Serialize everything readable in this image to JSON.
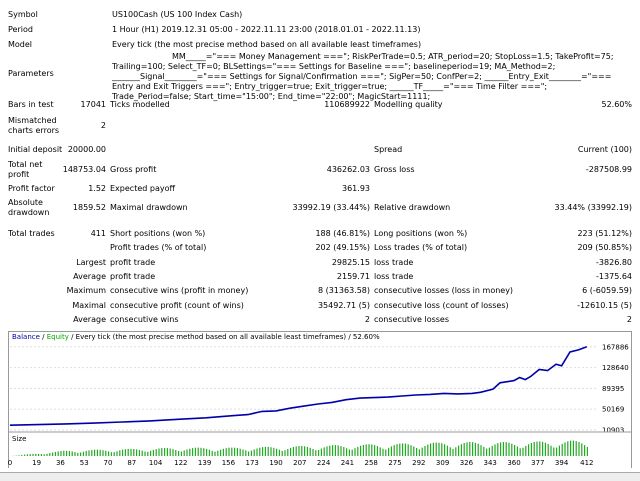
{
  "header": {
    "symbol_label": "Symbol",
    "symbol_value": "US100Cash (US 100 Index Cash)",
    "period_label": "Period",
    "period_value": "1 Hour (H1) 2019.12.31 05:00 - 2022.11.11 23:00 (2018.01.01 - 2022.11.13)",
    "model_label": "Model",
    "model_value": "Every tick (the most precise method based on all available least timeframes)",
    "params_label": "Parameters",
    "params_value": "MM_____=\"=== Money Management ===\"; RiskPerTrade=0.5; ATR_period=20; StopLoss=1.5; TakeProfit=75; Trailing=100; Select_TF=0; BLSettings=\"=== Settings for Baseline ===\"; baselineperiod=19; MA_Method=2; _______Signal________=\"=== Settings for Signal/Confirmation ===\"; SigPer=50; ConfPer=2; ______Entry_Exit________=\"=== Entry and Exit Triggers ===\"; Entry_trigger=true; Exit_trigger=true; ______TF_____=\"=== Time Filter ===\"; Trade_Period=false; Start_time=\"15:00\"; End_time=\"22:00\"; MagicStart=1111;"
  },
  "stats": {
    "bars_label": "Bars in test",
    "bars_value": "17041",
    "ticks_label": "Ticks modelled",
    "ticks_value": "110689922",
    "quality_label": "Modelling quality",
    "quality_value": "52.60%",
    "mismatch_label": "Mismatched charts errors",
    "mismatch_value": "2",
    "deposit_label": "Initial deposit",
    "deposit_value": "20000.00",
    "spread_label": "Spread",
    "spread_value": "Current (100)",
    "netprofit_label": "Total net profit",
    "netprofit_value": "148753.04",
    "grossprofit_label": "Gross profit",
    "grossprofit_value": "436262.03",
    "grossloss_label": "Gross loss",
    "grossloss_value": "-287508.99",
    "pf_label": "Profit factor",
    "pf_value": "1.52",
    "payoff_label": "Expected payoff",
    "payoff_value": "361.93",
    "absdd_label": "Absolute drawdown",
    "absdd_value": "1859.52",
    "maxdd_label": "Maximal drawdown",
    "maxdd_value": "33992.19 (33.44%)",
    "reldd_label": "Relative drawdown",
    "reldd_value": "33.44% (33992.19)",
    "trades_label": "Total trades",
    "trades_value": "411",
    "short_label": "Short positions (won %)",
    "short_value": "188 (46.81%)",
    "long_label": "Long positions (won %)",
    "long_value": "223 (51.12%)",
    "profitt_label": "Profit trades (% of total)",
    "profitt_value": "202 (49.15%)",
    "losst_label": "Loss trades (% of total)",
    "losst_value": "209 (50.85%)",
    "largest_label": "Largest",
    "largest_p_label": "profit trade",
    "largest_p_value": "29825.15",
    "largest_l_label": "loss trade",
    "largest_l_value": "-3826.80",
    "average_label": "Average",
    "average_p_label": "profit trade",
    "average_p_value": "2159.71",
    "average_l_label": "loss trade",
    "average_l_value": "-1375.64",
    "maximum_label": "Maximum",
    "maxwins_label": "consecutive wins (profit in money)",
    "maxwins_value": "8 (31363.58)",
    "maxlosses_label": "consecutive losses (loss in money)",
    "maxlosses_value": "6 (-6059.59)",
    "maximal_label": "Maximal",
    "maxprofit_label": "consecutive profit (count of wins)",
    "maxprofit_value": "35492.71 (5)",
    "maxloss_label": "consecutive loss (count of losses)",
    "maxloss_value": "-12610.15 (5)",
    "avgcons_label": "Average",
    "avgwins_label": "consecutive wins",
    "avgwins_value": "2",
    "avglosses_label": "consecutive losses",
    "avglosses_value": "2"
  },
  "chart_legend": {
    "balance": "Balance",
    "sep": " / ",
    "equity": "Equity",
    "rest": " / Every tick (the most precise method based on all available least timeframes) / 52.60%",
    "size": "Size"
  },
  "colors": {
    "balance": "#0000aa",
    "equity": "#00aa00",
    "volume": "#22aa22"
  },
  "chart_data": {
    "type": "line",
    "title": "",
    "yticks": [
      10903,
      50169,
      89395,
      128640,
      167886
    ],
    "xticks": [
      0,
      19,
      36,
      53,
      70,
      87,
      104,
      122,
      139,
      156,
      173,
      190,
      207,
      224,
      241,
      258,
      275,
      292,
      309,
      326,
      343,
      360,
      377,
      394,
      412
    ],
    "ylim": [
      10903,
      175000
    ],
    "xlim": [
      0,
      420
    ],
    "series": [
      {
        "values": [
          [
            0,
            20000
          ],
          [
            20,
            21000
          ],
          [
            40,
            22500
          ],
          [
            60,
            24000
          ],
          [
            80,
            26000
          ],
          [
            100,
            28000
          ],
          [
            120,
            31000
          ],
          [
            140,
            34000
          ],
          [
            160,
            38000
          ],
          [
            170,
            40000
          ],
          [
            180,
            46000
          ],
          [
            190,
            47000
          ],
          [
            200,
            52000
          ],
          [
            210,
            56000
          ],
          [
            220,
            60000
          ],
          [
            230,
            63000
          ],
          [
            240,
            68000
          ],
          [
            250,
            71000
          ],
          [
            260,
            72000
          ],
          [
            270,
            73000
          ],
          [
            280,
            75000
          ],
          [
            290,
            77000
          ],
          [
            300,
            78000
          ],
          [
            310,
            80000
          ],
          [
            320,
            79000
          ],
          [
            330,
            80000
          ],
          [
            336,
            82000
          ],
          [
            345,
            88000
          ],
          [
            350,
            100000
          ],
          [
            355,
            102000
          ],
          [
            360,
            104000
          ],
          [
            364,
            110000
          ],
          [
            368,
            106000
          ],
          [
            372,
            112000
          ],
          [
            378,
            125000
          ],
          [
            384,
            123000
          ],
          [
            390,
            135000
          ],
          [
            394,
            132000
          ],
          [
            400,
            158000
          ],
          [
            406,
            162000
          ],
          [
            412,
            167886
          ]
        ]
      }
    ],
    "volume": {
      "values": [
        [
          0,
          0
        ],
        [
          40,
          8
        ],
        [
          80,
          10
        ],
        [
          120,
          12
        ],
        [
          160,
          12
        ],
        [
          200,
          14
        ],
        [
          240,
          16
        ],
        [
          280,
          18
        ],
        [
          320,
          20
        ],
        [
          360,
          20
        ],
        [
          400,
          22
        ],
        [
          412,
          22
        ]
      ],
      "ylim": [
        0,
        30
      ]
    }
  }
}
